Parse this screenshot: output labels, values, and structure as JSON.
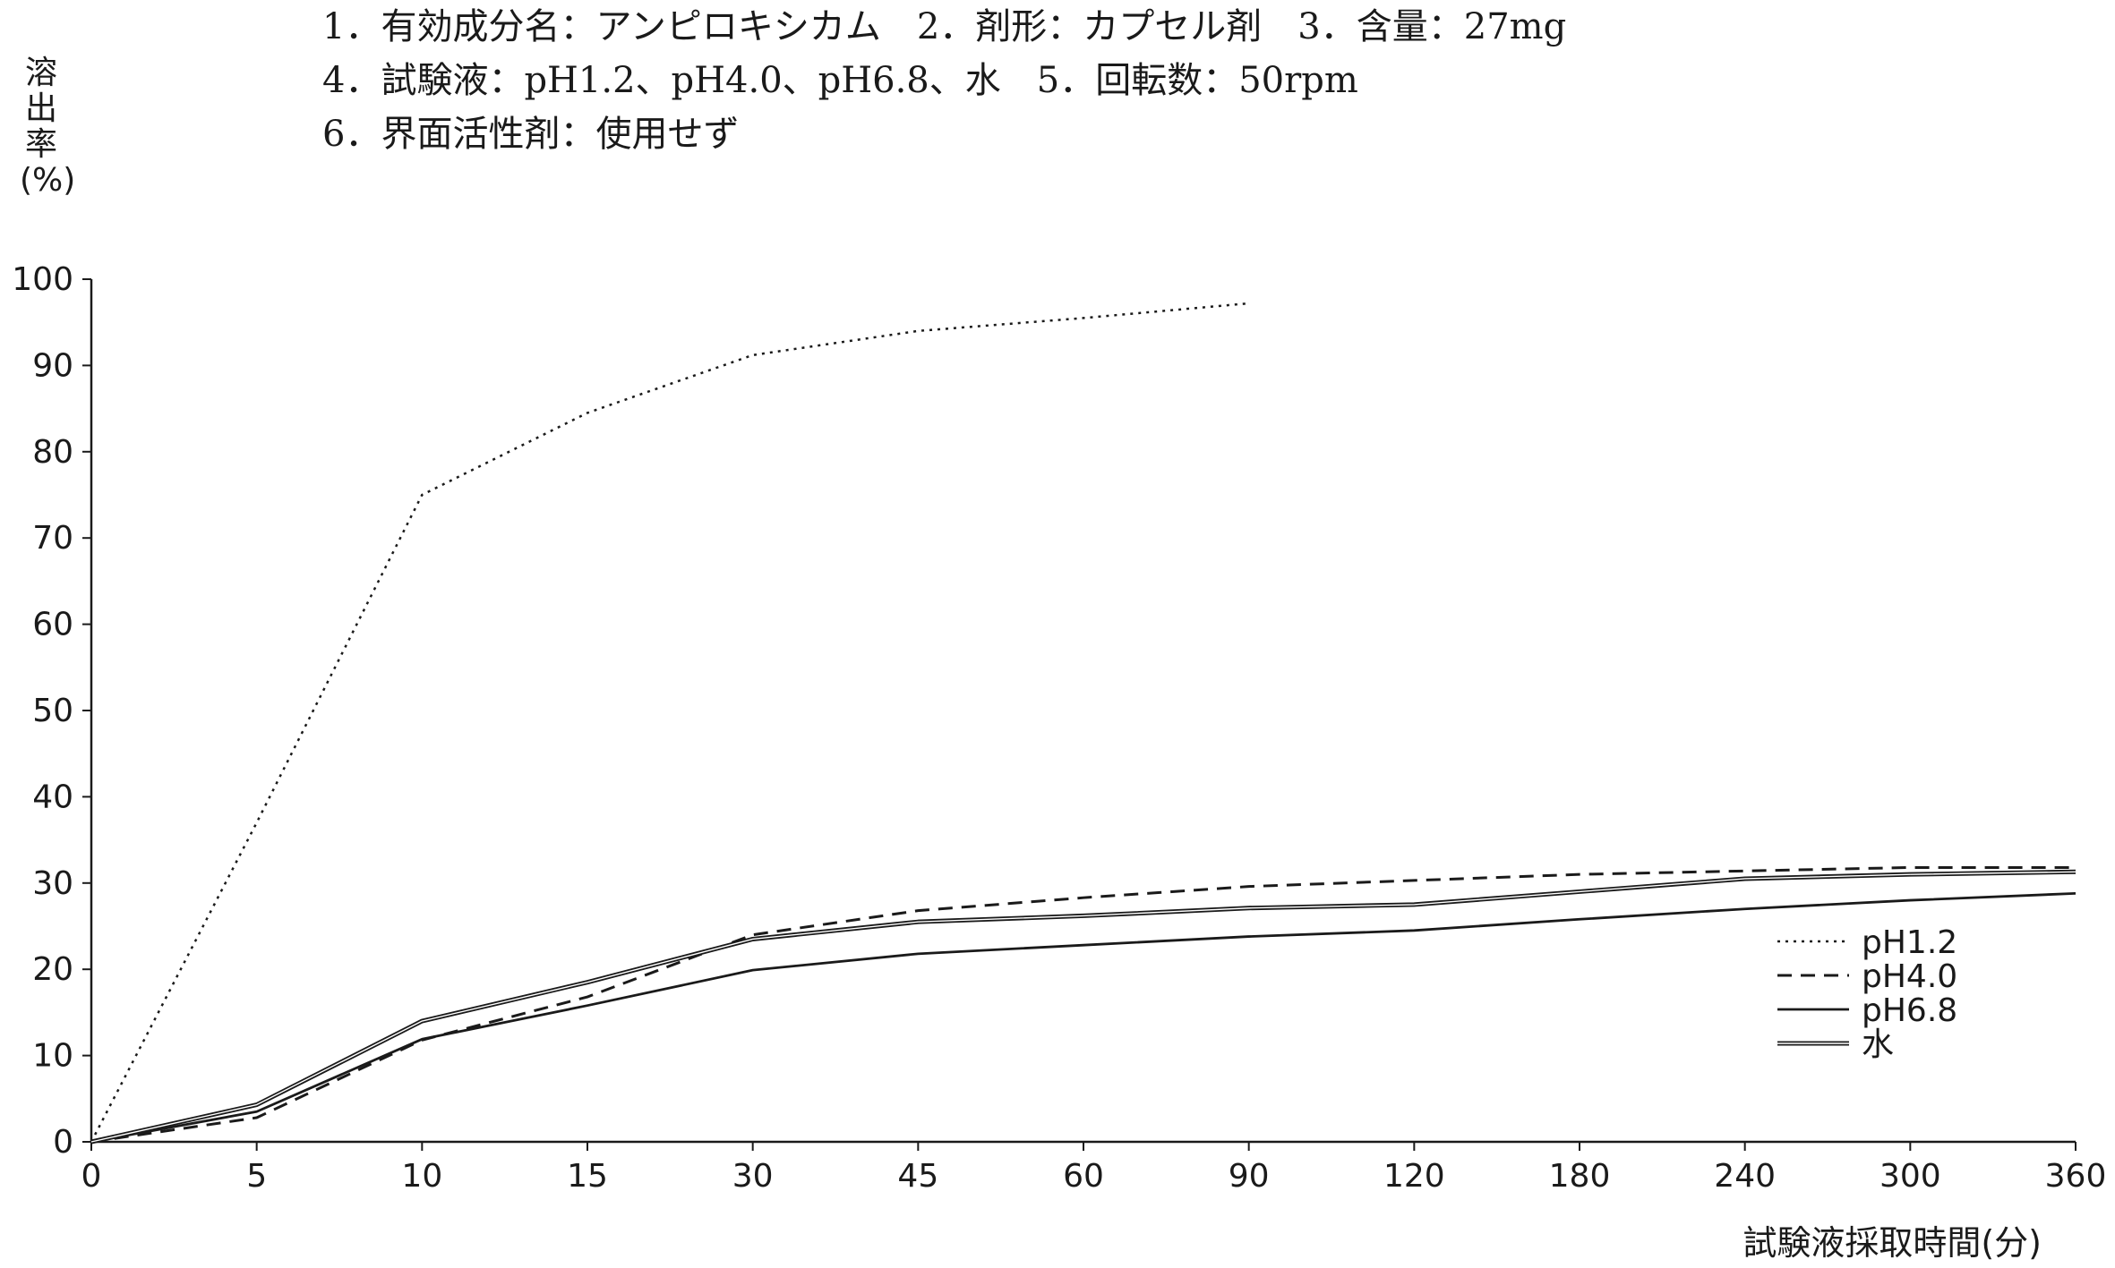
{
  "info": {
    "line1": "1．有効成分名：アンピロキシカム　2．剤形：カプセル剤　3．含量：27mg",
    "line2": "4．試験液：pH1.2、pH4.0、pH6.8、水　5．回転数：50rpm",
    "line3": "6．界面活性剤：使用せず"
  },
  "chart_data": {
    "type": "line",
    "title": "",
    "ylabel": "溶出率(%)",
    "xlabel": "試験液採取時間(分)",
    "x": [
      "0",
      "5",
      "10",
      "15",
      "30",
      "45",
      "60",
      "90",
      "120",
      "180",
      "240",
      "300",
      "360"
    ],
    "ylim": [
      0,
      100
    ],
    "yticks": [
      "0",
      "10",
      "20",
      "30",
      "40",
      "50",
      "60",
      "70",
      "80",
      "90",
      "100"
    ],
    "grid": false,
    "legend_position": "right",
    "series": [
      {
        "name": "pH1.2",
        "style": "dotted",
        "color": "#1a1a1a",
        "values": [
          0,
          37,
          75,
          84.5,
          91.2,
          94,
          95.5,
          97.2,
          null,
          null,
          null,
          null,
          null
        ]
      },
      {
        "name": "pH4.0",
        "style": "dashed",
        "color": "#1a1a1a",
        "values": [
          0,
          2.8,
          11.8,
          16.8,
          24,
          26.8,
          28.3,
          29.6,
          30.3,
          31,
          31.4,
          31.8,
          31.8
        ]
      },
      {
        "name": "pH6.8",
        "style": "solid",
        "color": "#1a1a1a",
        "values": [
          0,
          3.5,
          11.9,
          15.8,
          19.9,
          21.8,
          22.8,
          23.8,
          24.5,
          25.8,
          27,
          28,
          28.8
        ]
      },
      {
        "name": "水",
        "style": "double",
        "color": "#1a1a1a",
        "values": [
          0,
          4.3,
          14,
          18.5,
          23.5,
          25.5,
          26.2,
          27.1,
          27.5,
          29,
          30.5,
          31,
          31.3
        ]
      }
    ]
  }
}
